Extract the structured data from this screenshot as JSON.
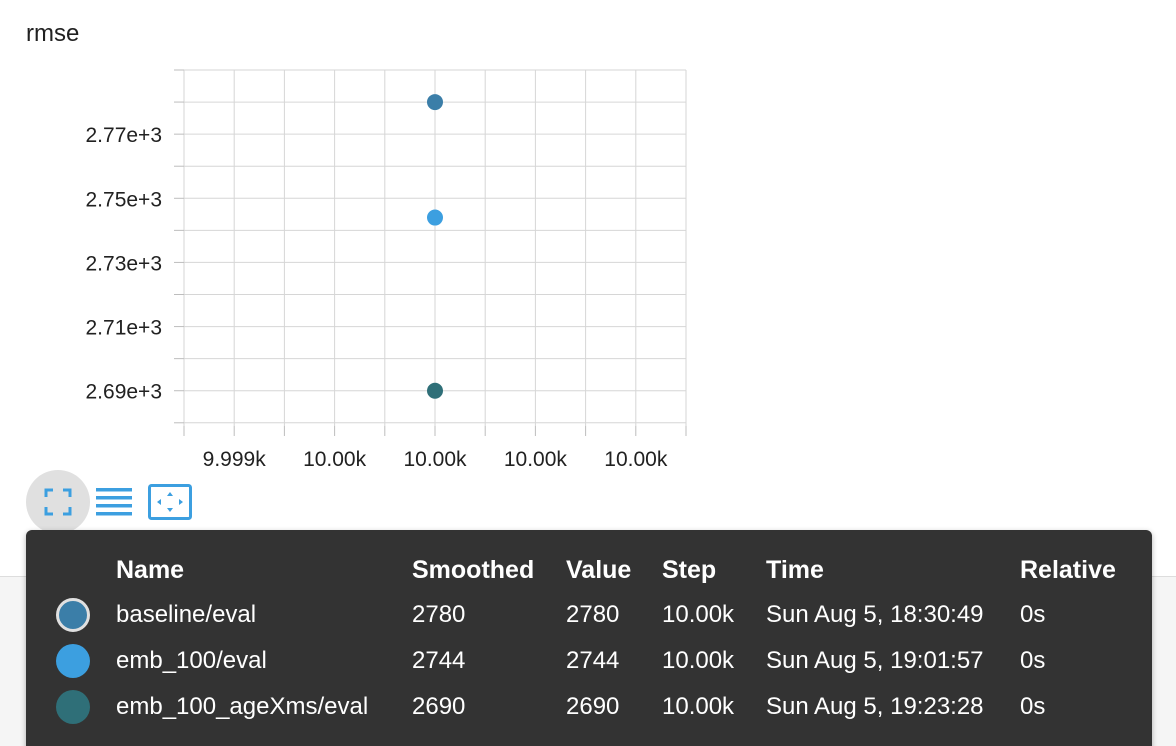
{
  "chart_data": {
    "type": "scatter",
    "title": "rmse",
    "y_ticks": [
      "2.69e+3",
      "2.71e+3",
      "2.73e+3",
      "2.75e+3",
      "2.77e+3"
    ],
    "y_tick_values": [
      2690,
      2710,
      2730,
      2750,
      2770
    ],
    "x_ticks": [
      "9.999k",
      "10.00k",
      "10.00k",
      "10.00k",
      "10.00k"
    ],
    "ylim": [
      2679,
      2790
    ],
    "grid": true,
    "series": [
      {
        "name": "baseline/eval",
        "x": [
          10000
        ],
        "y": [
          2780
        ],
        "color": "#3b7ea8"
      },
      {
        "name": "emb_100/eval",
        "x": [
          10000
        ],
        "y": [
          2744
        ],
        "color": "#3c9fe0"
      },
      {
        "name": "emb_100_ageXms/eval",
        "x": [
          10000
        ],
        "y": [
          2690
        ],
        "color": "#2f6f78"
      }
    ]
  },
  "toolbar": {
    "buttons": [
      {
        "icon": "fullscreen-icon",
        "active": true
      },
      {
        "icon": "list-icon",
        "active": false
      },
      {
        "icon": "fit-domain-icon",
        "active": false
      }
    ],
    "accent": "#3c9fe0"
  },
  "tooltip": {
    "headers": {
      "name": "Name",
      "smoothed": "Smoothed",
      "value": "Value",
      "step": "Step",
      "time": "Time",
      "relative": "Relative"
    },
    "rows": [
      {
        "color": "#3b7ea8",
        "selected": true,
        "name": "baseline/eval",
        "smoothed": "2780",
        "value": "2780",
        "step": "10.00k",
        "time": "Sun Aug 5, 18:30:49",
        "relative": "0s"
      },
      {
        "color": "#3c9fe0",
        "selected": false,
        "name": "emb_100/eval",
        "smoothed": "2744",
        "value": "2744",
        "step": "10.00k",
        "time": "Sun Aug 5, 19:01:57",
        "relative": "0s"
      },
      {
        "color": "#2f6f78",
        "selected": false,
        "name": "emb_100_ageXms/eval",
        "smoothed": "2690",
        "value": "2690",
        "step": "10.00k",
        "time": "Sun Aug 5, 19:23:28",
        "relative": "0s"
      }
    ]
  }
}
